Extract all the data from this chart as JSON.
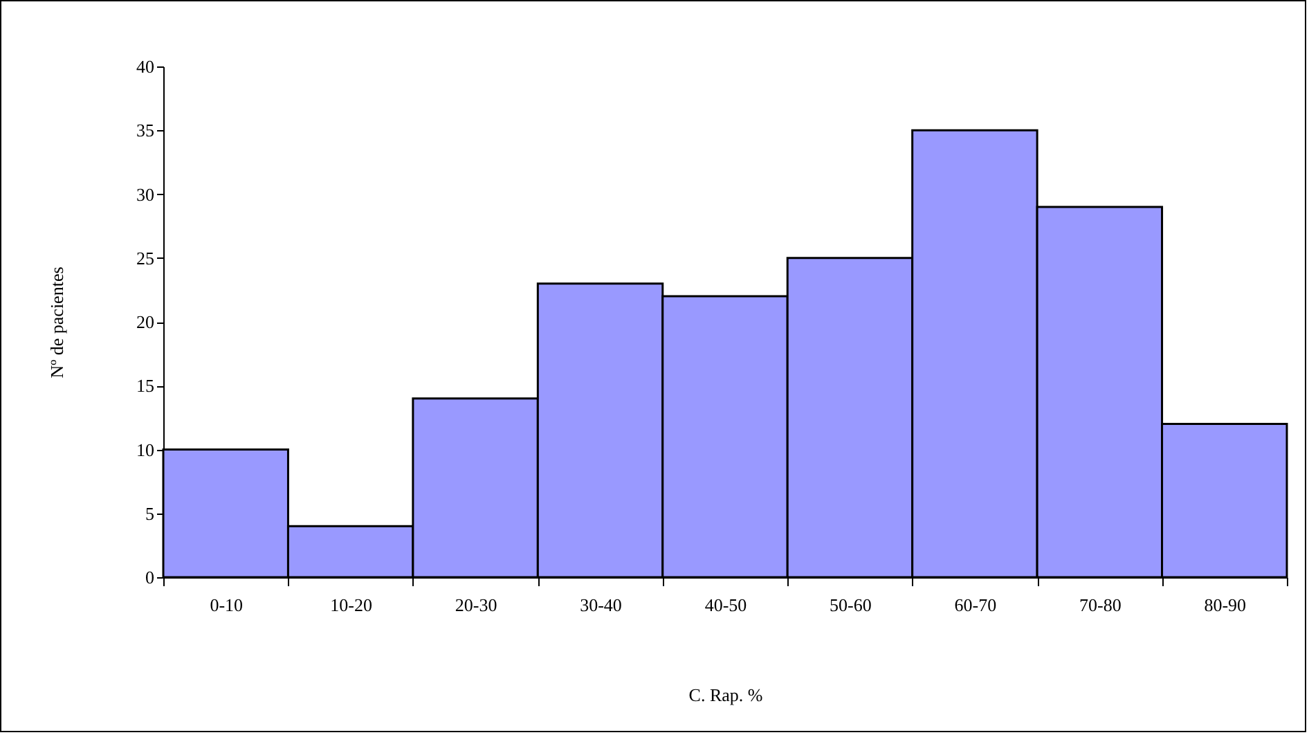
{
  "chart_data": {
    "type": "bar",
    "xlabel": "C. Rap. %",
    "ylabel": "Nº de pacientes",
    "categories": [
      "0-10",
      "10-20",
      "20-30",
      "30-40",
      "40-50",
      "50-60",
      "60-70",
      "70-80",
      "80-90"
    ],
    "values": [
      10,
      4,
      14,
      23,
      22,
      25,
      35,
      29,
      12
    ],
    "color": "#9999ff",
    "ylim": [
      0,
      40
    ],
    "yticks": [
      0,
      5,
      10,
      15,
      20,
      25,
      30,
      35,
      40
    ]
  }
}
